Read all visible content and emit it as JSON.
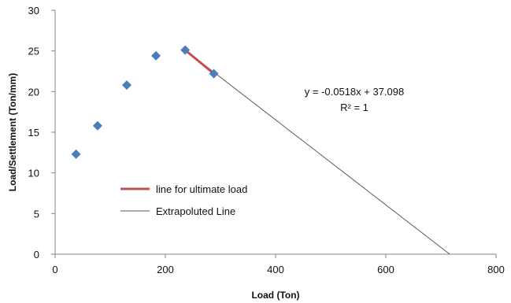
{
  "chart_data": {
    "type": "scatter",
    "xlabel": "Load (Ton)",
    "ylabel": "Load/Settlement (Ton/mm)",
    "xlim": [
      0,
      800
    ],
    "ylim": [
      0,
      30
    ],
    "x_ticks": [
      "0",
      "200",
      "400",
      "600",
      "800"
    ],
    "y_ticks": [
      "0",
      "5",
      "10",
      "15",
      "20",
      "25",
      "30"
    ],
    "grid": false,
    "series": [
      {
        "type": "scatter",
        "marker": "diamond",
        "color": "#4a7ebb",
        "points": [
          {
            "x": 38,
            "y": 12.3
          },
          {
            "x": 77,
            "y": 15.8
          },
          {
            "x": 130,
            "y": 20.8
          },
          {
            "x": 183,
            "y": 24.4
          },
          {
            "x": 236,
            "y": 25.1
          },
          {
            "x": 288,
            "y": 22.2
          }
        ]
      },
      {
        "name": "line for ultimate load",
        "type": "line",
        "color": "#c0504d",
        "points": [
          {
            "x": 236,
            "y": 25.1
          },
          {
            "x": 288,
            "y": 22.2
          }
        ]
      },
      {
        "name": "Extrapoluted Line",
        "type": "line",
        "color": "#595959",
        "points": [
          {
            "x": 236,
            "y": 25.1
          },
          {
            "x": 716,
            "y": 0
          }
        ]
      }
    ],
    "annotations": [
      "y = -0.0518x + 37.098",
      "R² = 1"
    ],
    "legend_position": "inside-left"
  }
}
